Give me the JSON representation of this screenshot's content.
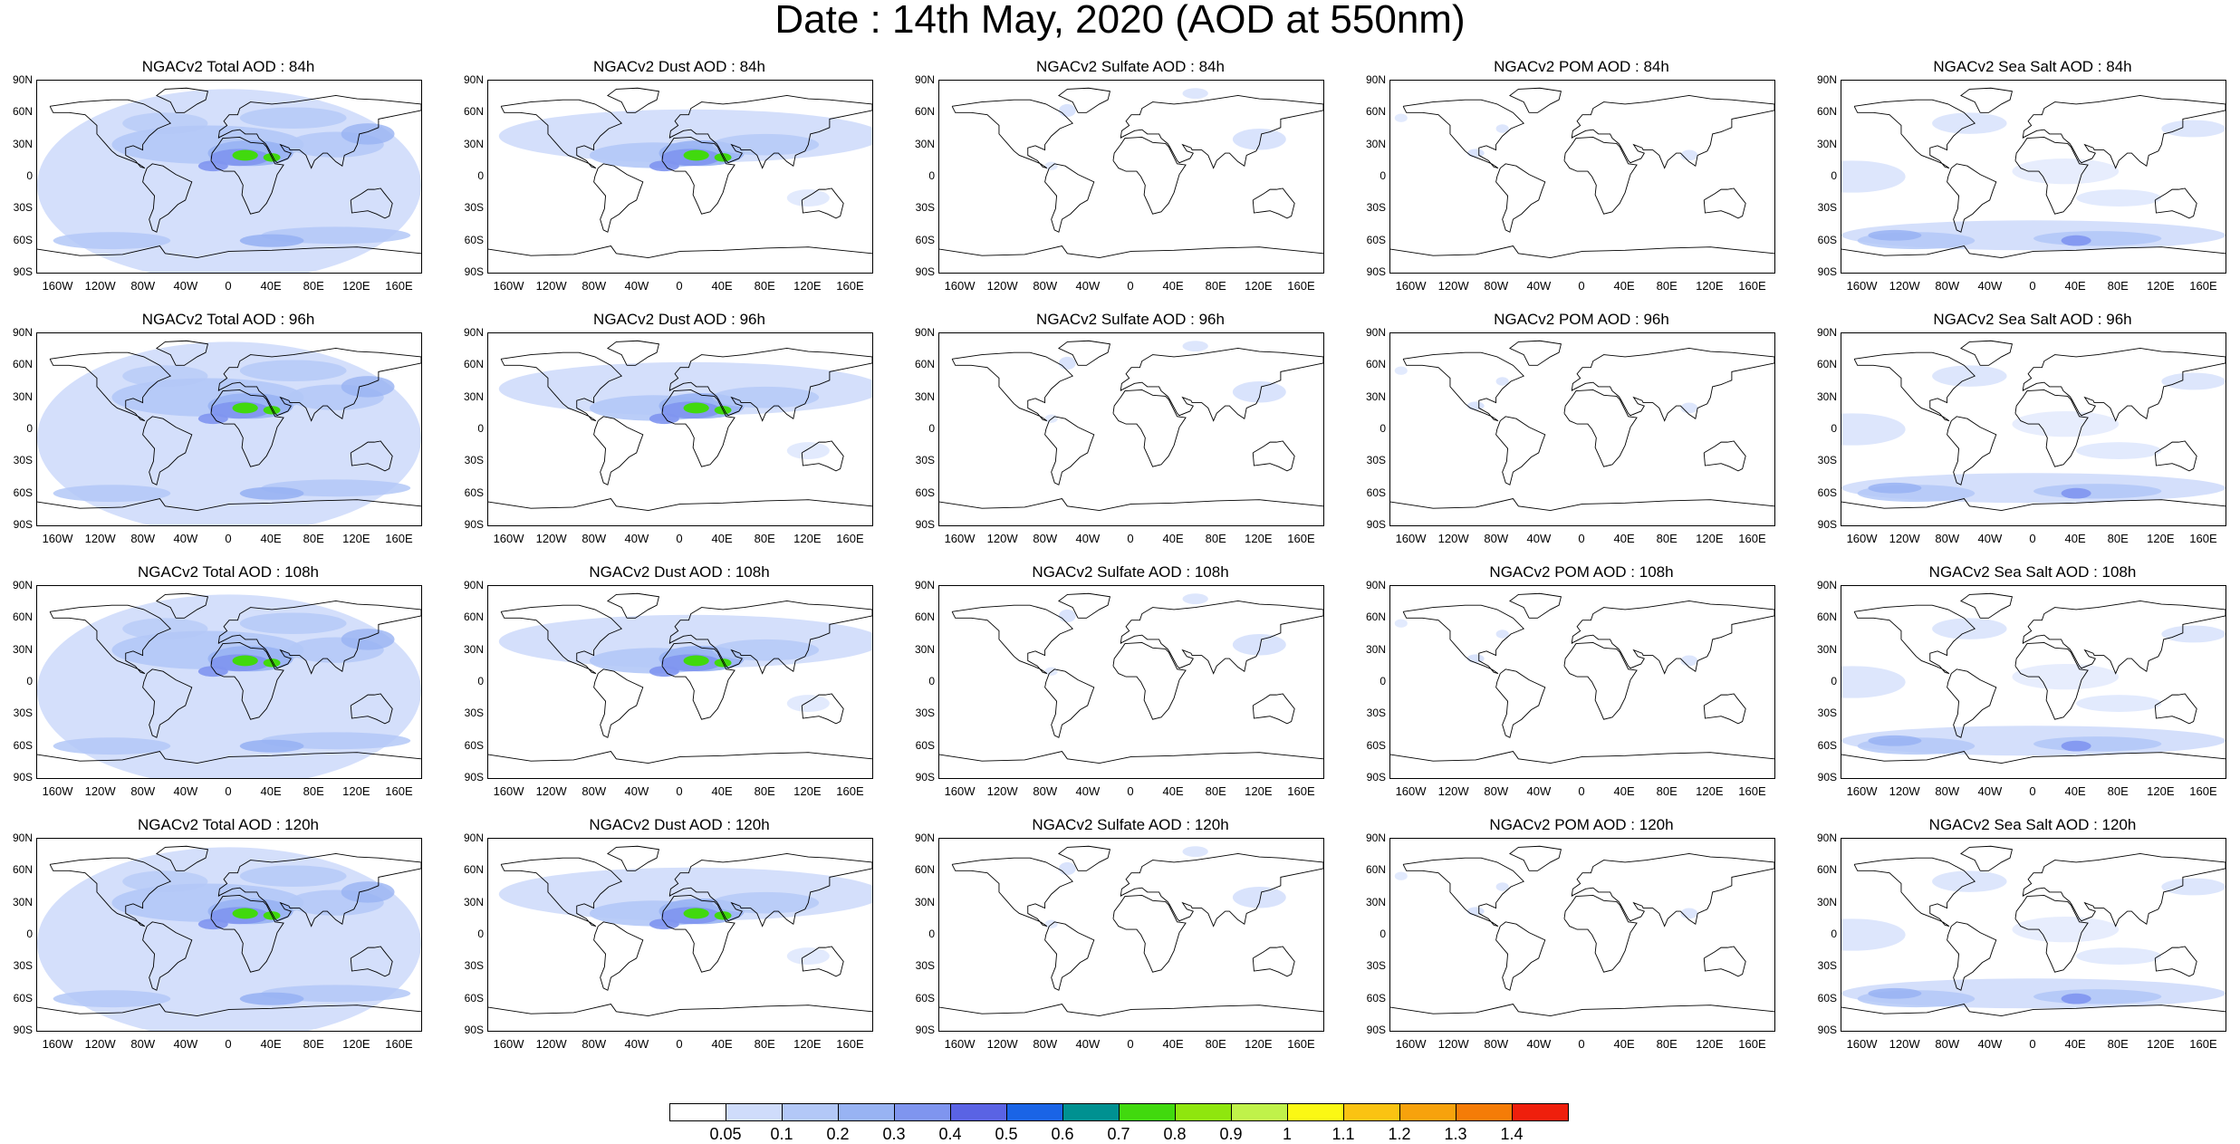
{
  "title": "Date : 14th May, 2020 (AOD at 550nm)",
  "lat_ticks": [
    "90N",
    "60N",
    "30N",
    "0",
    "30S",
    "60S",
    "90S"
  ],
  "lon_ticks": [
    "160W",
    "120W",
    "80W",
    "40W",
    "0",
    "40E",
    "80E",
    "120E",
    "160E"
  ],
  "panels": [
    {
      "row": 0,
      "col": 0,
      "title": "NGACv2 Total AOD : 84h",
      "field": "total"
    },
    {
      "row": 0,
      "col": 1,
      "title": "NGACv2 Dust AOD : 84h",
      "field": "dust"
    },
    {
      "row": 0,
      "col": 2,
      "title": "NGACv2 Sulfate AOD : 84h",
      "field": "sulfate"
    },
    {
      "row": 0,
      "col": 3,
      "title": "NGACv2 POM AOD : 84h",
      "field": "pom"
    },
    {
      "row": 0,
      "col": 4,
      "title": "NGACv2 Sea Salt AOD : 84h",
      "field": "seasalt"
    },
    {
      "row": 1,
      "col": 0,
      "title": "NGACv2 Total AOD : 96h",
      "field": "total"
    },
    {
      "row": 1,
      "col": 1,
      "title": "NGACv2 Dust AOD : 96h",
      "field": "dust"
    },
    {
      "row": 1,
      "col": 2,
      "title": "NGACv2 Sulfate AOD : 96h",
      "field": "sulfate"
    },
    {
      "row": 1,
      "col": 3,
      "title": "NGACv2 POM AOD : 96h",
      "field": "pom"
    },
    {
      "row": 1,
      "col": 4,
      "title": "NGACv2 Sea Salt AOD : 96h",
      "field": "seasalt"
    },
    {
      "row": 2,
      "col": 0,
      "title": "NGACv2 Total AOD : 108h",
      "field": "total"
    },
    {
      "row": 2,
      "col": 1,
      "title": "NGACv2 Dust AOD : 108h",
      "field": "dust"
    },
    {
      "row": 2,
      "col": 2,
      "title": "NGACv2 Sulfate AOD : 108h",
      "field": "sulfate"
    },
    {
      "row": 2,
      "col": 3,
      "title": "NGACv2 POM AOD : 108h",
      "field": "pom"
    },
    {
      "row": 2,
      "col": 4,
      "title": "NGACv2 Sea Salt AOD : 108h",
      "field": "seasalt"
    },
    {
      "row": 3,
      "col": 0,
      "title": "NGACv2 Total AOD : 120h",
      "field": "total"
    },
    {
      "row": 3,
      "col": 1,
      "title": "NGACv2 Dust AOD : 120h",
      "field": "dust"
    },
    {
      "row": 3,
      "col": 2,
      "title": "NGACv2 Sulfate AOD : 120h",
      "field": "sulfate"
    },
    {
      "row": 3,
      "col": 3,
      "title": "NGACv2 POM AOD : 120h",
      "field": "pom"
    },
    {
      "row": 3,
      "col": 4,
      "title": "NGACv2 Sea Salt  AOD : 120h",
      "field": "seasalt"
    }
  ],
  "colorbar": {
    "colors": [
      "#ffffff",
      "#cfdcfb",
      "#b3c8f7",
      "#98b3f3",
      "#7f95ef",
      "#5a63e4",
      "#1a64e6",
      "#009191",
      "#41d90e",
      "#8fe60e",
      "#c0f24a",
      "#fbf814",
      "#fac312",
      "#f7a20c",
      "#f57c07",
      "#ef1f0c"
    ],
    "labels": [
      "0.05",
      "0.1",
      "0.2",
      "0.3",
      "0.4",
      "0.5",
      "0.6",
      "0.7",
      "0.8",
      "0.9",
      "1",
      "1.1",
      "1.2",
      "1.3",
      "1.4"
    ]
  }
}
